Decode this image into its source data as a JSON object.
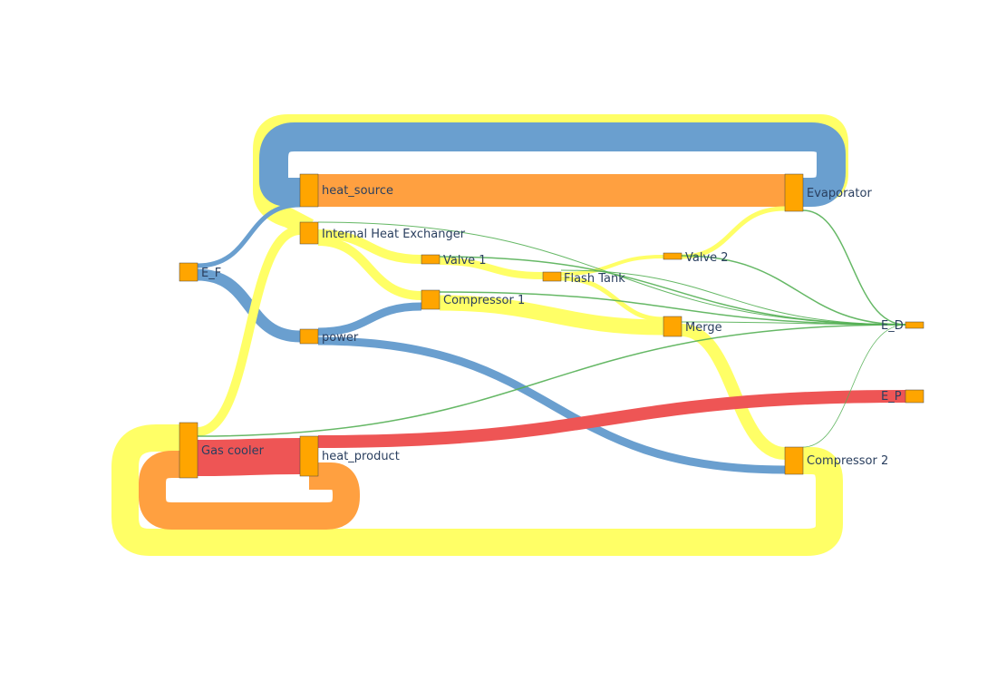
{
  "colors": {
    "node": "#FFA500",
    "node_border": "#444444",
    "label": "#2a3f5f",
    "material": "#FFFF66",
    "power": "#6A9FCF",
    "heat": "#FFA040",
    "product": "#EE5555",
    "destruction": "#55B055"
  },
  "nodes": [
    {
      "id": "heat_source",
      "label": "heat_source"
    },
    {
      "id": "ihx",
      "label": "Internal Heat Exchanger"
    },
    {
      "id": "ef",
      "label": "E_F"
    },
    {
      "id": "valve1",
      "label": "Valve 1"
    },
    {
      "id": "flash",
      "label": "Flash Tank"
    },
    {
      "id": "comp1",
      "label": "Compressor 1"
    },
    {
      "id": "valve2",
      "label": "Valve 2"
    },
    {
      "id": "power",
      "label": "power"
    },
    {
      "id": "merge",
      "label": "Merge"
    },
    {
      "id": "evap",
      "label": "Evaporator"
    },
    {
      "id": "ed",
      "label": "E_D"
    },
    {
      "id": "ep",
      "label": "E_P"
    },
    {
      "id": "gascooler",
      "label": "Gas cooler"
    },
    {
      "id": "heat_product",
      "label": "heat_product"
    },
    {
      "id": "comp2",
      "label": "Compressor 2"
    }
  ],
  "flow_types": [
    "material",
    "power",
    "heat",
    "product",
    "destruction"
  ]
}
